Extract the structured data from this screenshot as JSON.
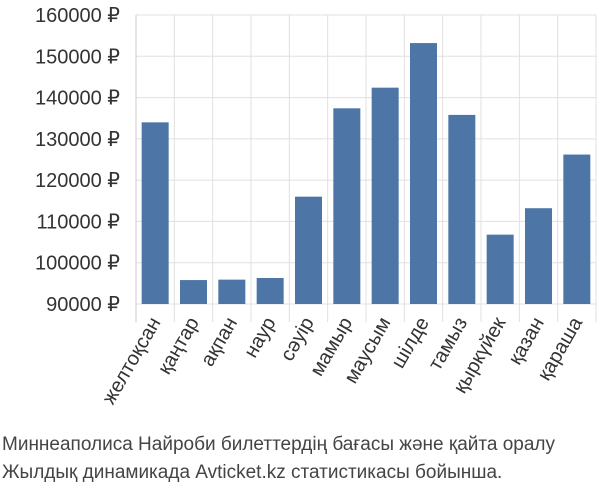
{
  "chart_data": {
    "type": "bar",
    "categories": [
      "желтоқсан",
      "қаңтар",
      "ақпан",
      "наур",
      "сәуір",
      "мамыр",
      "маусым",
      "шілде",
      "тамыз",
      "қыркүйек",
      "қазан",
      "қараша"
    ],
    "values": [
      134000,
      95800,
      95900,
      96300,
      116000,
      137400,
      142400,
      153200,
      135800,
      106800,
      113200,
      126200
    ],
    "ylim": [
      90000,
      160000
    ],
    "yticks": [
      90000,
      100000,
      110000,
      120000,
      130000,
      140000,
      150000,
      160000
    ],
    "ytick_suffix": " ₽",
    "grid": true,
    "bar_color": "#4d76a7"
  },
  "caption": {
    "line1": "Миннеаполиса Найроби билеттердің бағасы және қайта оралу",
    "line2": "Жылдық динамикада Avticket.kz статистикасы бойынша."
  }
}
